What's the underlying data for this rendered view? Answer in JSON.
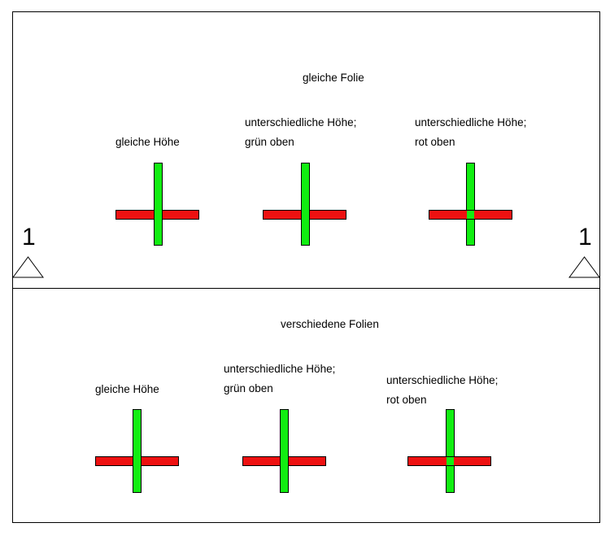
{
  "colors": {
    "red": "#ee1111",
    "green": "#11ee11",
    "line": "#000000"
  },
  "top": {
    "title": "gleiche Folie",
    "crosses": [
      {
        "label_line1": "gleiche Höhe",
        "label_line2": ""
      },
      {
        "label_line1": "unterschiedliche Höhe;",
        "label_line2": "grün oben"
      },
      {
        "label_line1": "unterschiedliche Höhe;",
        "label_line2": "rot oben"
      }
    ],
    "support_left": "1",
    "support_right": "1"
  },
  "bottom": {
    "title": "verschiedene Folien",
    "crosses": [
      {
        "label_line1": "gleiche Höhe",
        "label_line2": ""
      },
      {
        "label_line1": "unterschiedliche Höhe;",
        "label_line2": "grün oben"
      },
      {
        "label_line1": "unterschiedliche Höhe;",
        "label_line2": "rot oben"
      }
    ]
  }
}
